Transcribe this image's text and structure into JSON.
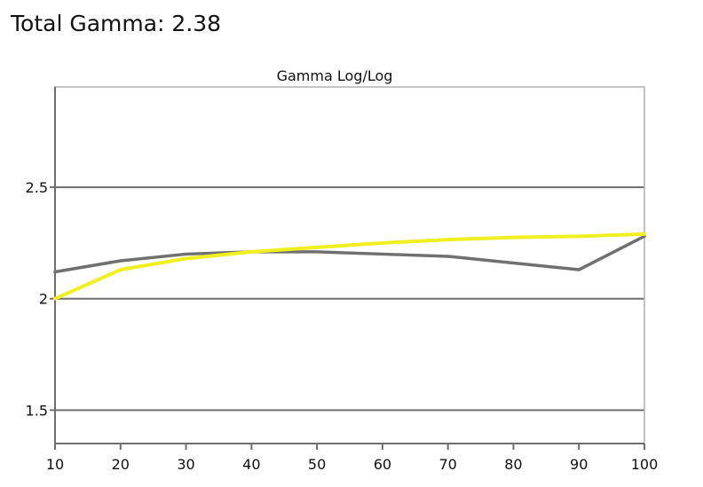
{
  "headline": "Total Gamma: 2.38",
  "colors": {
    "background": "#ffffff",
    "plot_border": "#b0b0b0",
    "gridline": "#6e6e6e",
    "axis": "#6e6e6e",
    "text": "#111111"
  },
  "chart_data": {
    "type": "line",
    "title": "Gamma Log/Log",
    "xlabel": "",
    "ylabel": "",
    "x": [
      10,
      20,
      30,
      40,
      50,
      60,
      70,
      80,
      90,
      100
    ],
    "xlim": [
      10,
      100
    ],
    "ylim": [
      1.35,
      2.95
    ],
    "x_ticks": [
      10,
      20,
      30,
      40,
      50,
      60,
      70,
      80,
      90,
      100
    ],
    "x_tick_labels": [
      "10",
      "20",
      "30",
      "40",
      "50",
      "60",
      "70",
      "80",
      "90",
      "100"
    ],
    "y_ticks": [
      1.5,
      2,
      2.5
    ],
    "y_tick_labels": [
      "1.5",
      "2",
      "2.5"
    ],
    "grid": "horizontal",
    "series": [
      {
        "color": "#707070",
        "values": [
          2.12,
          2.17,
          2.2,
          2.21,
          2.21,
          2.2,
          2.19,
          2.16,
          2.13,
          2.28
        ]
      },
      {
        "color": "#f0f020",
        "values": [
          2.0,
          2.13,
          2.18,
          2.21,
          2.23,
          2.25,
          2.265,
          2.275,
          2.28,
          2.29
        ]
      }
    ]
  }
}
